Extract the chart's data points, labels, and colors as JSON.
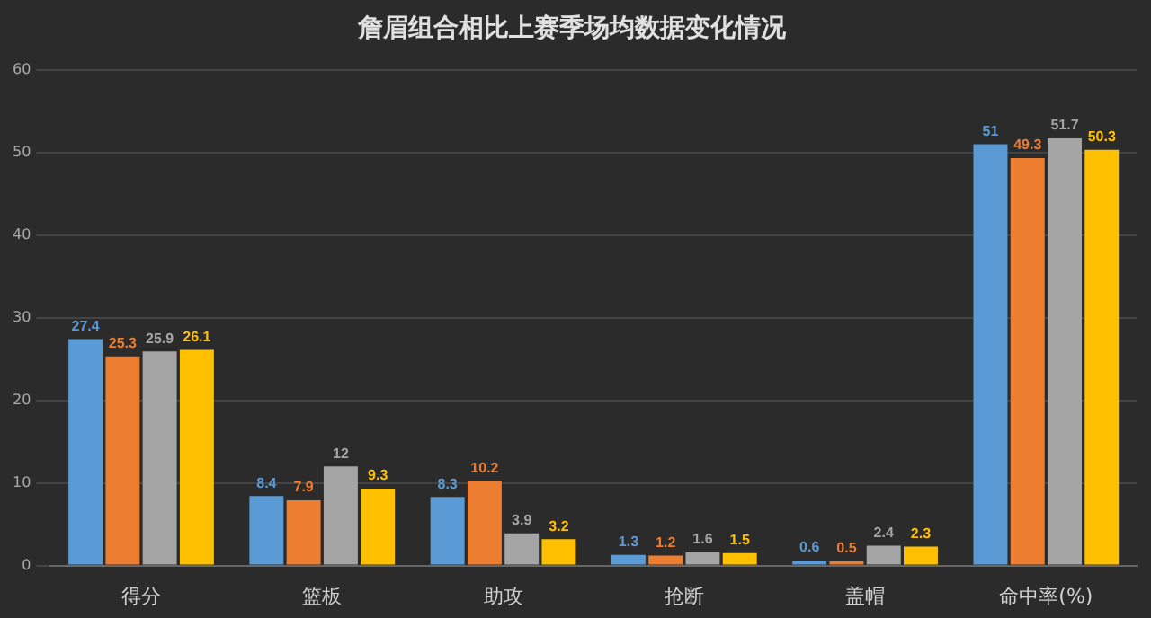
{
  "chart_data": {
    "type": "bar",
    "title": "詹眉组合相比上赛季场均数据变化情况",
    "categories": [
      "得分",
      "篮板",
      "助攻",
      "抢断",
      "盖帽",
      "命中率(%)"
    ],
    "series": [
      {
        "color": "#5b9bd5",
        "values": [
          27.4,
          8.4,
          8.3,
          1.3,
          0.6,
          51
        ]
      },
      {
        "color": "#ed7d31",
        "values": [
          25.3,
          7.9,
          10.2,
          1.2,
          0.5,
          49.3
        ]
      },
      {
        "color": "#a5a5a5",
        "values": [
          25.9,
          12,
          3.9,
          1.6,
          2.4,
          51.7
        ]
      },
      {
        "color": "#ffc000",
        "values": [
          26.1,
          9.3,
          3.2,
          1.5,
          2.3,
          50.3
        ]
      }
    ],
    "ylim": [
      0,
      60
    ],
    "yticks": [
      0,
      10,
      20,
      30,
      40,
      50,
      60
    ],
    "grid": "y",
    "legend": false,
    "data_labels": true
  }
}
